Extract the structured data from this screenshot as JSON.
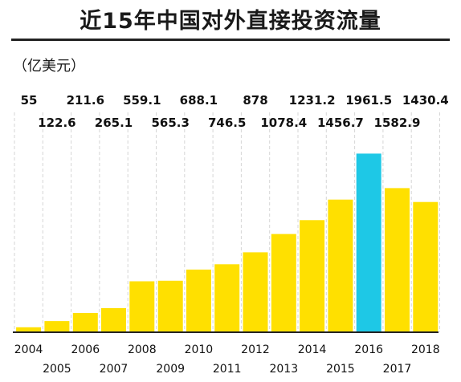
{
  "chart_data": {
    "type": "bar",
    "title": "近15年中国对外直接投资流量",
    "ylabel": "（亿美元）",
    "categories": [
      "2004",
      "2005",
      "2006",
      "2007",
      "2008",
      "2009",
      "2010",
      "2011",
      "2012",
      "2013",
      "2014",
      "2015",
      "2016",
      "2017",
      "2018"
    ],
    "values": [
      55,
      122.6,
      211.6,
      265.1,
      559.1,
      565.3,
      688.1,
      746.5,
      878,
      1078.4,
      1231.2,
      1456.7,
      1961.5,
      1582.9,
      1430.4
    ],
    "value_labels": [
      "55",
      "122.6",
      "211.6",
      "265.1",
      "559.1",
      "565.3",
      "688.1",
      "746.5",
      "878",
      "1078.4",
      "1231.2",
      "1456.7",
      "1961.5",
      "1582.9",
      "1430.4"
    ],
    "ylim": [
      0,
      2150
    ],
    "highlight_category": "2016",
    "grid": true,
    "colors": {
      "bar": "#FFE000",
      "highlight": "#1EC8E6"
    }
  }
}
